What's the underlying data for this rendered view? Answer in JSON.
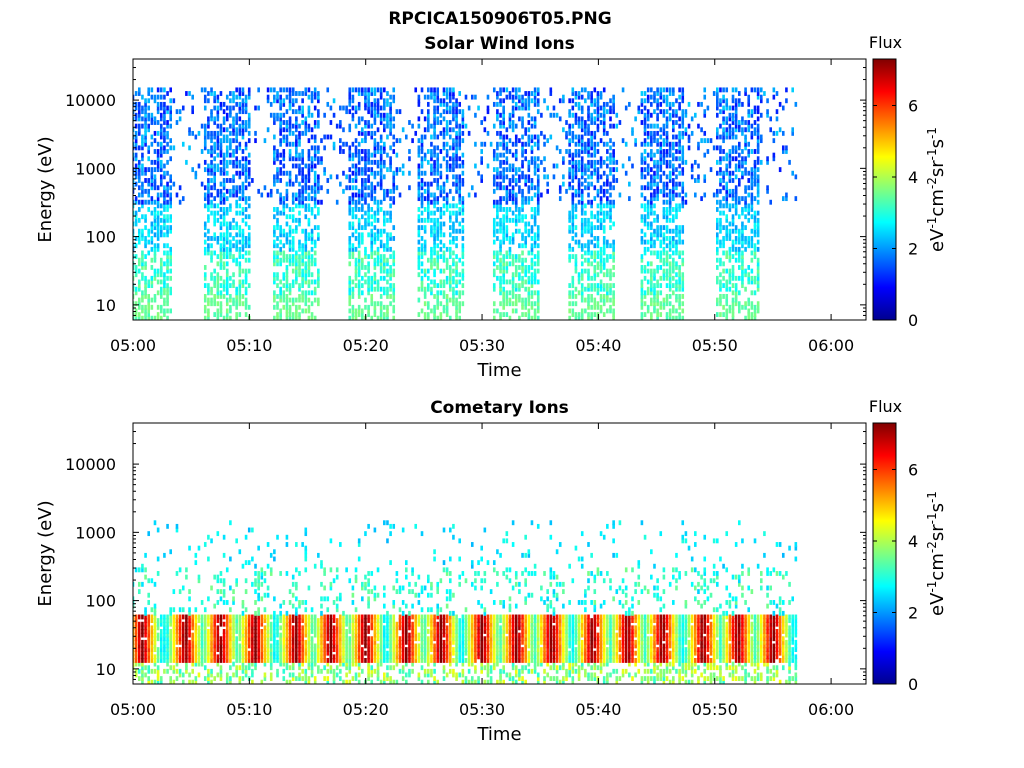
{
  "figure": {
    "title": "RPCICA150906T05.PNG"
  },
  "chart_data": [
    {
      "type": "heatmap",
      "title": "Solar Wind Ions",
      "xlabel": "Time",
      "ylabel": "Energy (eV)",
      "x_ticks": [
        "05:00",
        "05:10",
        "05:20",
        "05:30",
        "05:40",
        "05:50",
        "06:00"
      ],
      "x_range": [
        "05:00",
        "06:03"
      ],
      "y_scale": "log",
      "y_ticks": [
        10,
        100,
        1000,
        10000
      ],
      "y_tick_labels": [
        "10",
        "100",
        "1000",
        "10000"
      ],
      "y_range": [
        6,
        40000
      ],
      "colorbar": {
        "label": "Flux",
        "unit": "eV-1cm-2sr-1s-1",
        "ticks": [
          0,
          2,
          4,
          6
        ],
        "range": [
          0,
          7.3
        ],
        "colormap": "jet"
      },
      "data_extent": [
        "05:00",
        "05:57"
      ],
      "sweep_centers_min": [
        1.5,
        8.0,
        14.0,
        20.5,
        26.5,
        33.0,
        39.5,
        45.5,
        52.0
      ],
      "sweep_halfwidth_min": 1.5,
      "dominant_energy_range_eV": [
        6,
        15000
      ],
      "flux_range": [
        1,
        4
      ]
    },
    {
      "type": "heatmap",
      "title": "Cometary Ions",
      "xlabel": "Time",
      "ylabel": "Energy (eV)",
      "x_ticks": [
        "05:00",
        "05:10",
        "05:20",
        "05:30",
        "05:40",
        "05:50",
        "06:00"
      ],
      "x_range": [
        "05:00",
        "06:03"
      ],
      "y_scale": "log",
      "y_ticks": [
        10,
        100,
        1000,
        10000
      ],
      "y_tick_labels": [
        "10",
        "100",
        "1000",
        "10000"
      ],
      "y_range": [
        6,
        40000
      ],
      "colorbar": {
        "label": "Flux",
        "unit": "eV-1cm-2sr-1s-1",
        "ticks": [
          0,
          2,
          4,
          6
        ],
        "range": [
          0,
          7.3
        ],
        "colormap": "jet"
      },
      "data_extent": [
        "05:00",
        "05:57"
      ],
      "peak_centers_min": [
        0.8,
        4.5,
        7.5,
        10.5,
        14.0,
        17.0,
        20.0,
        23.5,
        26.5,
        30.0,
        33.0,
        36.0,
        39.5,
        42.5,
        45.5,
        49.0,
        52.0,
        55.0
      ],
      "peak_energy_range_eV": [
        15,
        45
      ],
      "peak_flux": 7
    }
  ]
}
